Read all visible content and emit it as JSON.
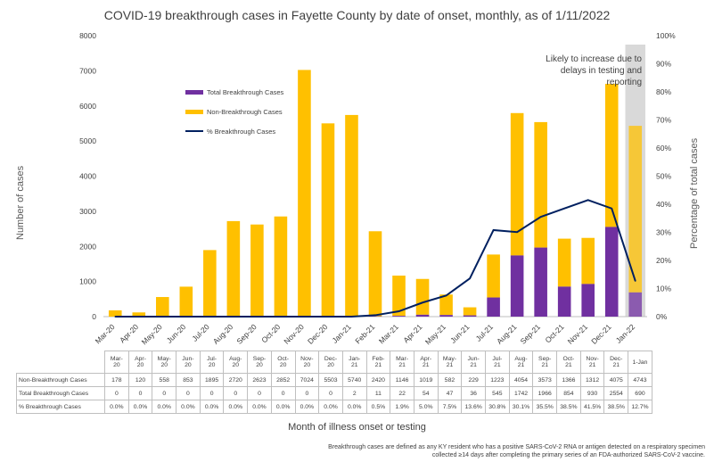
{
  "chart_data": {
    "type": "bar",
    "title": "COVID-19 breakthrough cases in Fayette County by date of onset, monthly, as of 1/11/2022",
    "xlabel": "Month of illness onset or testing",
    "ylabel": "Number of cases",
    "ylabel_right": "Percentage of total cases",
    "ylim": [
      0,
      8000
    ],
    "y_ticks": [
      "0",
      "1000",
      "2000",
      "3000",
      "4000",
      "5000",
      "6000",
      "7000",
      "8000"
    ],
    "ylim_right": [
      0,
      100
    ],
    "y_ticks_right": [
      "0%",
      "10%",
      "20%",
      "30%",
      "40%",
      "50%",
      "60%",
      "70%",
      "80%",
      "90%",
      "100%"
    ],
    "stacked": true,
    "categories": [
      "Mar-20",
      "Apr-20",
      "May-20",
      "Jun-20",
      "Jul-20",
      "Aug-20",
      "Sep-20",
      "Oct-20",
      "Nov-20",
      "Dec-20",
      "Jan-21",
      "Feb-21",
      "Mar-21",
      "Apr-21",
      "May-21",
      "Jun-21",
      "Jul-21",
      "Aug-21",
      "Sep-21",
      "Oct-21",
      "Nov-21",
      "Dec-21",
      "Jan-22"
    ],
    "table_headers": [
      "Mar-20",
      "Apr-20",
      "May-20",
      "Jun-20",
      "Jul-20",
      "Aug-20",
      "Sep-20",
      "Oct-20",
      "Nov-20",
      "Dec-20",
      "Jan-21",
      "Feb-21",
      "Mar-21",
      "Apr-21",
      "May-21",
      "Jun-21",
      "Jul-21",
      "Aug-21",
      "Sep-21",
      "Oct-21",
      "Nov-21",
      "Dec-21",
      "1-Jan"
    ],
    "series": [
      {
        "name": "Total Breakthrough Cases",
        "color": "#7030a0",
        "values": [
          0,
          0,
          0,
          0,
          0,
          0,
          0,
          0,
          0,
          0,
          2,
          11,
          22,
          54,
          47,
          36,
          545,
          1742,
          1966,
          854,
          930,
          2554,
          690
        ],
        "labels": [
          "0",
          "0",
          "0",
          "0",
          "0",
          "0",
          "0",
          "0",
          "0",
          "0",
          "2",
          "11",
          "22",
          "54",
          "47",
          "36",
          "545",
          "1742",
          "1966",
          "854",
          "930",
          "2554",
          "690"
        ]
      },
      {
        "name": "Non-Breakthrough Cases",
        "color": "#ffc000",
        "values": [
          178,
          120,
          558,
          853,
          1895,
          2720,
          2623,
          2852,
          7024,
          5503,
          5740,
          2420,
          1146,
          1019,
          582,
          229,
          1223,
          4054,
          3573,
          1366,
          1312,
          4075,
          4743
        ],
        "labels": [
          "178",
          "120",
          "558",
          "853",
          "1895",
          "2720",
          "2623",
          "2852",
          "7024",
          "5503",
          "5740",
          "2420",
          "1146",
          "1019",
          "582",
          "229",
          "1223",
          "4054",
          "3573",
          "1366",
          "1312",
          "4075",
          "4743"
        ]
      },
      {
        "name": "% Breakthrough Cases",
        "color": "#002060",
        "axis": "right",
        "values": [
          0.0,
          0.0,
          0.0,
          0.0,
          0.0,
          0.0,
          0.0,
          0.0,
          0.0,
          0.0,
          0.0,
          0.5,
          1.9,
          5.0,
          7.5,
          13.6,
          30.8,
          30.1,
          35.5,
          38.5,
          41.5,
          38.5,
          12.7
        ],
        "labels": [
          "0.0%",
          "0.0%",
          "0.0%",
          "0.0%",
          "0.0%",
          "0.0%",
          "0.0%",
          "0.0%",
          "0.0%",
          "0.0%",
          "0.0%",
          "0.5%",
          "1.9%",
          "5.0%",
          "7.5%",
          "13.6%",
          "30.8%",
          "30.1%",
          "35.5%",
          "38.5%",
          "41.5%",
          "38.5%",
          "12.7%"
        ]
      }
    ],
    "table_row_labels": [
      "Non-Breakthrough Cases",
      "Total Breakthrough Cases",
      "% Breakthrough Cases"
    ],
    "highlighted_category": "Jan-22",
    "annotation": "Likely to increase due to delays in testing and reporting",
    "legend_position": "upper-left",
    "grid": false,
    "footnote_lines": [
      "Breakthrough cases are defined as any KY resident who has a positive SARS-CoV-2 RNA or antigen detected on a respiratory specimen",
      "collected ≥14 days after completing the primary series of an FDA-authorized SARS-CoV-2 vaccine."
    ]
  }
}
